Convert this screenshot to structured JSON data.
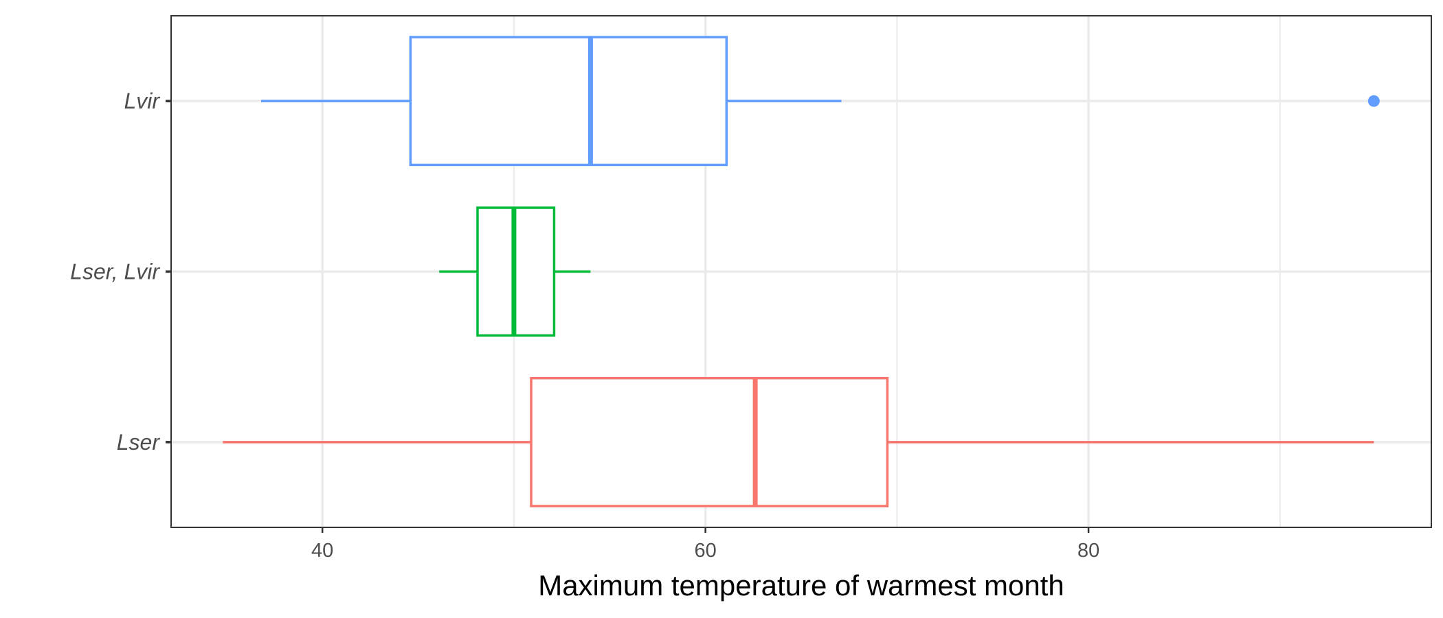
{
  "chart_data": {
    "type": "boxplot",
    "orientation": "horizontal",
    "xlabel": "Maximum temperature of warmest month",
    "ylabel": "",
    "xlim": [
      32.1,
      97.9
    ],
    "x_ticks": [
      40,
      60,
      80
    ],
    "x_tick_labels": [
      "40",
      "60",
      "80"
    ],
    "grid": true,
    "legend": "none",
    "categories": [
      "Lvir",
      "Lser, Lvir",
      "Lser"
    ],
    "series": [
      {
        "category": "Lvir",
        "color": "#619CFF",
        "whisker_low": 36.8,
        "q1": 44.6,
        "median": 54.0,
        "q3": 61.1,
        "whisker_high": 67.1,
        "outliers": [
          94.9
        ]
      },
      {
        "category": "Lser, Lvir",
        "color": "#00BA38",
        "whisker_low": 46.1,
        "q1": 48.1,
        "median": 50.0,
        "q3": 52.1,
        "whisker_high": 54.0,
        "outliers": []
      },
      {
        "category": "Lser",
        "color": "#F8766D",
        "whisker_low": 34.8,
        "q1": 50.9,
        "median": 62.6,
        "q3": 69.5,
        "whisker_high": 94.9,
        "outliers": []
      }
    ]
  }
}
